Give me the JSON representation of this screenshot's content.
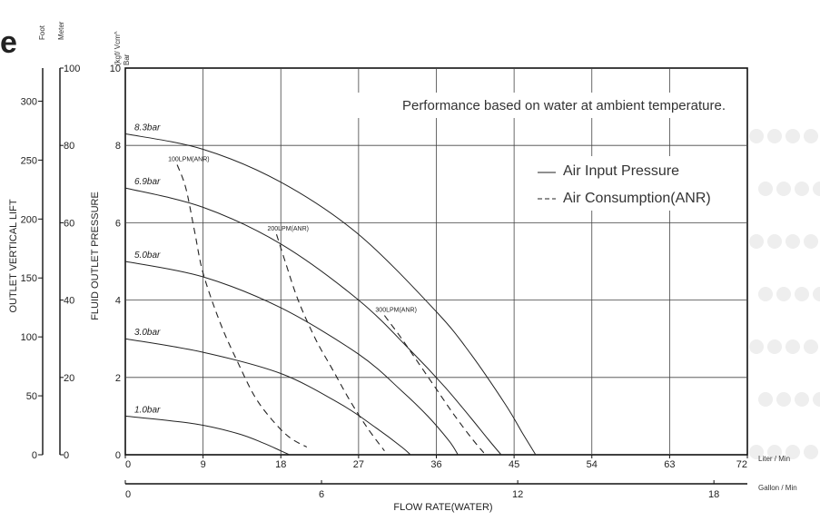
{
  "header_glyph": "e",
  "chart_data": {
    "type": "line",
    "annotation": "Performance based on water at ambient temperature.",
    "x_axis": {
      "label": "FLOW RATE(WATER)",
      "primary_unit": "Liter / Min",
      "primary_ticks": [
        "0",
        "9",
        "18",
        "27",
        "36",
        "45",
        "54",
        "63",
        "72"
      ],
      "xlim": [
        0,
        72
      ],
      "secondary_unit": "Gallon / Min",
      "secondary_ticks": [
        "0",
        "6",
        "12",
        "18"
      ]
    },
    "y_axis": {
      "label": "FLUID OUTLET PRESSURE",
      "unit_top": "(kgf/ Vcm^",
      "unit_bottom": "Bar",
      "ticks": [
        "0",
        "2",
        "4",
        "6",
        "8",
        "10"
      ],
      "ylim": [
        0,
        10
      ]
    },
    "lift_axes": {
      "label": "OUTLET VERTICAL LIFT",
      "foot_unit": "Foot",
      "foot_ticks": [
        "0",
        "50",
        "100",
        "150",
        "200",
        "250",
        "300"
      ],
      "meter_unit": "Meter",
      "meter_ticks": [
        "0",
        "20",
        "40",
        "60",
        "80",
        "100"
      ]
    },
    "legend": {
      "position": "top-right",
      "items": [
        {
          "label": "Air Input Pressure",
          "style": "solid"
        },
        {
          "label": "Air Consumption(ANR)",
          "style": "dashed"
        }
      ]
    },
    "grid": true,
    "series": [
      {
        "name": "8.3bar",
        "style": "solid",
        "x": [
          0,
          9,
          18,
          27,
          36,
          40,
          44,
          46,
          47.5
        ],
        "y": [
          8.3,
          7.9,
          7.05,
          5.7,
          3.7,
          2.6,
          1.3,
          0.55,
          0
        ]
      },
      {
        "name": "6.9bar",
        "style": "solid",
        "x": [
          0,
          9,
          18,
          27,
          33,
          37,
          40,
          42,
          43.5
        ],
        "y": [
          6.9,
          6.4,
          5.45,
          4.0,
          2.7,
          1.75,
          0.95,
          0.4,
          0
        ]
      },
      {
        "name": "5.0bar",
        "style": "solid",
        "x": [
          0,
          9,
          18,
          27,
          32,
          35,
          37.5,
          38.5
        ],
        "y": [
          5.0,
          4.6,
          3.8,
          2.6,
          1.65,
          1.0,
          0.35,
          0
        ]
      },
      {
        "name": "3.0bar",
        "style": "solid",
        "x": [
          0,
          9,
          18,
          25,
          29,
          32,
          33
        ],
        "y": [
          3.0,
          2.65,
          2.1,
          1.3,
          0.7,
          0.2,
          0
        ]
      },
      {
        "name": "1.0bar",
        "style": "solid",
        "x": [
          0,
          8,
          13,
          16,
          18,
          19
        ],
        "y": [
          1.0,
          0.8,
          0.55,
          0.3,
          0.1,
          0
        ]
      },
      {
        "name": "100LPM(ANR)",
        "style": "dashed",
        "x": [
          6,
          7,
          8,
          9,
          11,
          13,
          15,
          17,
          19,
          21
        ],
        "y": [
          7.5,
          6.9,
          5.8,
          4.7,
          3.4,
          2.4,
          1.5,
          0.9,
          0.45,
          0.2
        ]
      },
      {
        "name": "200LPM(ANR)",
        "style": "dashed",
        "x": [
          17.5,
          18.5,
          20,
          22,
          24,
          26,
          28,
          30
        ],
        "y": [
          5.7,
          5.0,
          4.0,
          3.0,
          2.2,
          1.4,
          0.7,
          0.1
        ]
      },
      {
        "name": "300LPM(ANR)",
        "style": "dashed",
        "x": [
          30,
          32,
          34,
          36,
          38,
          40,
          41.5
        ],
        "y": [
          3.6,
          3.0,
          2.35,
          1.7,
          1.05,
          0.45,
          0.05
        ]
      }
    ]
  }
}
